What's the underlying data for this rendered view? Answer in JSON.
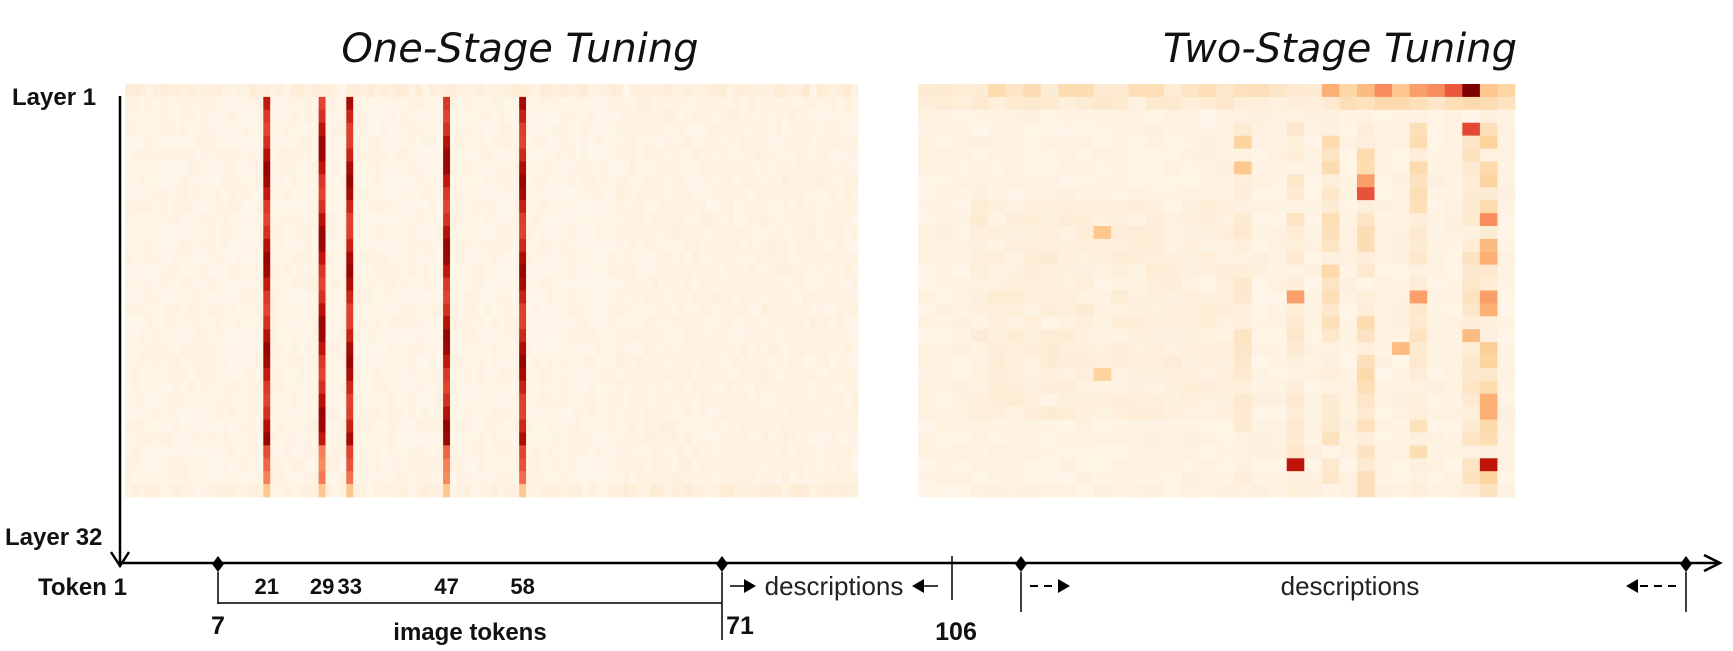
{
  "chart_data": [
    {
      "type": "heatmap",
      "title": "One-Stage Tuning",
      "y_labels": [
        "Layer 1",
        "Layer 32"
      ],
      "x_start_label": "Token 1",
      "tick_labels": [
        "7",
        "21",
        "29",
        "33",
        "47",
        "58",
        "71",
        "106"
      ],
      "hot_tokens": [
        21,
        29,
        33,
        47,
        58
      ],
      "n_tokens": 106,
      "n_layers": 32,
      "image_tokens_range": [
        7,
        71
      ],
      "descriptions_range": [
        71,
        106
      ],
      "region_labels": {
        "image": "image tokens",
        "text": "descriptions"
      },
      "colors": {
        "low": "#fff6ea",
        "high": "#9e0000"
      }
    },
    {
      "type": "heatmap",
      "title": "Two-Stage Tuning",
      "region_labels": {
        "text": "descriptions"
      },
      "n_tokens": 34,
      "n_layers": 32,
      "colors": {
        "low": "#fff6ea",
        "high": "#7a0000"
      }
    }
  ]
}
